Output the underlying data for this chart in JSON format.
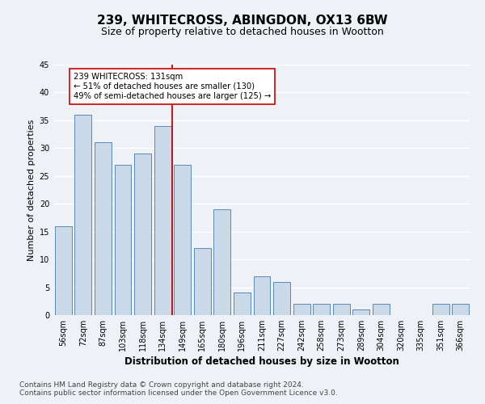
{
  "title1": "239, WHITECROSS, ABINGDON, OX13 6BW",
  "title2": "Size of property relative to detached houses in Wootton",
  "xlabel": "Distribution of detached houses by size in Wootton",
  "ylabel": "Number of detached properties",
  "categories": [
    "56sqm",
    "72sqm",
    "87sqm",
    "103sqm",
    "118sqm",
    "134sqm",
    "149sqm",
    "165sqm",
    "180sqm",
    "196sqm",
    "211sqm",
    "227sqm",
    "242sqm",
    "258sqm",
    "273sqm",
    "289sqm",
    "304sqm",
    "320sqm",
    "335sqm",
    "351sqm",
    "366sqm"
  ],
  "values": [
    16,
    36,
    31,
    27,
    29,
    34,
    27,
    12,
    19,
    4,
    7,
    6,
    2,
    2,
    2,
    1,
    2,
    0,
    0,
    2,
    2
  ],
  "bar_color": "#c9d9e8",
  "bar_edge_color": "#5a8ab5",
  "vline_x": 5.5,
  "vline_color": "#cc0000",
  "annotation_line1": "239 WHITECROSS: 131sqm",
  "annotation_line2": "← 51% of detached houses are smaller (130)",
  "annotation_line3": "49% of semi-detached houses are larger (125) →",
  "annotation_box_color": "#ffffff",
  "annotation_box_edge": "#cc0000",
  "ylim": [
    0,
    45
  ],
  "yticks": [
    0,
    5,
    10,
    15,
    20,
    25,
    30,
    35,
    40,
    45
  ],
  "footer1": "Contains HM Land Registry data © Crown copyright and database right 2024.",
  "footer2": "Contains public sector information licensed under the Open Government Licence v3.0.",
  "bg_color": "#eef2f7",
  "plot_bg_color": "#eef2f7",
  "grid_color": "#ffffff",
  "title1_fontsize": 11,
  "title2_fontsize": 9,
  "xlabel_fontsize": 8.5,
  "ylabel_fontsize": 8,
  "tick_fontsize": 7,
  "footer_fontsize": 6.5
}
